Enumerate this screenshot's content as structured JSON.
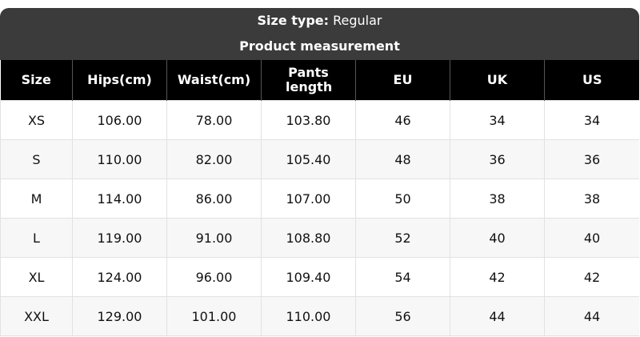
{
  "size_type": {
    "label": "Size type:",
    "value": "Regular"
  },
  "subtitle": "Product measurement",
  "columns": [
    "Size",
    "Hips(cm)",
    "Waist(cm)",
    "Pants length",
    "EU",
    "UK",
    "US"
  ],
  "rows": [
    [
      "XS",
      "106.00",
      "78.00",
      "103.80",
      "46",
      "34",
      "34"
    ],
    [
      "S",
      "110.00",
      "82.00",
      "105.40",
      "48",
      "36",
      "36"
    ],
    [
      "M",
      "114.00",
      "86.00",
      "107.00",
      "50",
      "38",
      "38"
    ],
    [
      "L",
      "119.00",
      "91.00",
      "108.80",
      "52",
      "40",
      "40"
    ],
    [
      "XL",
      "124.00",
      "96.00",
      "109.40",
      "54",
      "42",
      "42"
    ],
    [
      "XXL",
      "129.00",
      "101.00",
      "110.00",
      "56",
      "44",
      "44"
    ]
  ]
}
